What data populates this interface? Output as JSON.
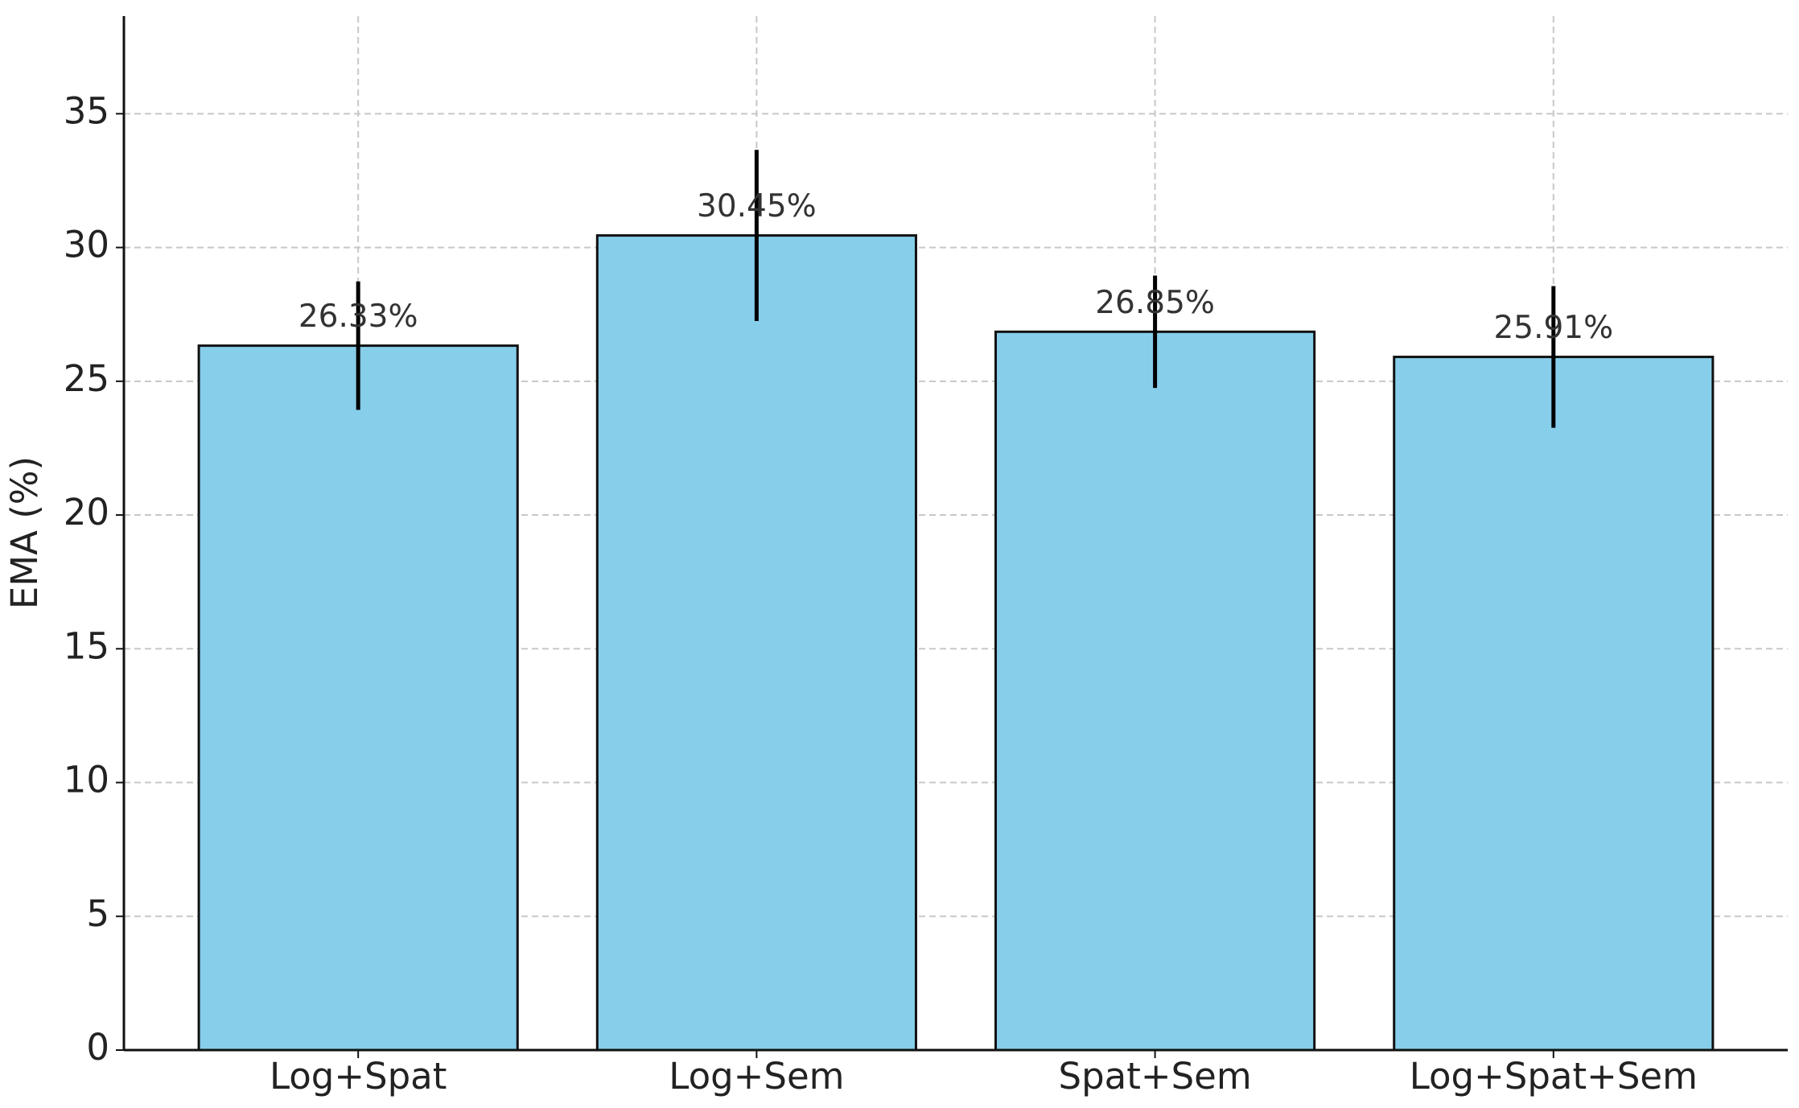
{
  "chart_data": {
    "type": "bar",
    "y_label": "EMA (%)",
    "categories": [
      "Log+Spat",
      "Log+Sem",
      "Spat+Sem",
      "Log+Spat+Sem"
    ],
    "values": [
      26.33,
      30.45,
      26.85,
      25.91
    ],
    "value_labels": [
      "26.33%",
      "30.45%",
      "26.85%",
      "25.91%"
    ],
    "errors": [
      2.4,
      3.2,
      2.1,
      2.65
    ],
    "color": "#87ceeb",
    "edge_color": "#111111",
    "error_color": "#000000",
    "ylim": [
      0,
      38.65
    ],
    "yticks": [
      0,
      5,
      10,
      15,
      20,
      25,
      30,
      35
    ],
    "grid": true
  }
}
